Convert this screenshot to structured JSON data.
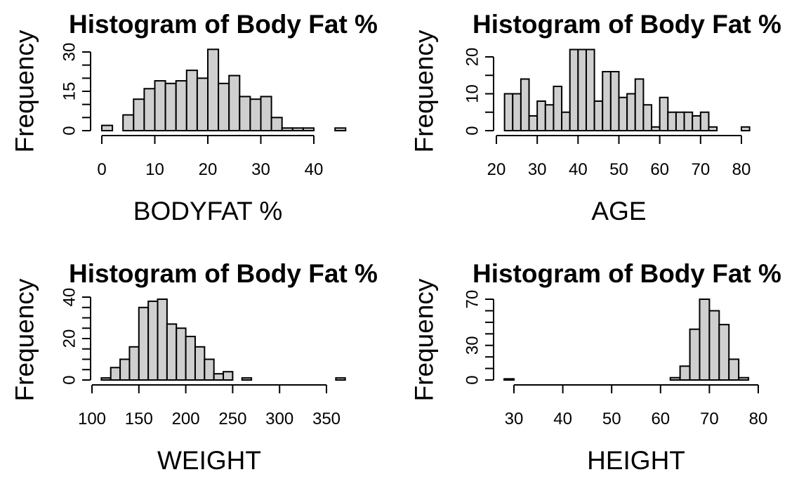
{
  "chart_data": [
    {
      "type": "histogram",
      "title": "Histogram of Body Fat %",
      "xlabel": "BODYFAT %",
      "ylabel": "Frequency",
      "bin_start": 0,
      "bin_width": 2,
      "counts": [
        2,
        0,
        6,
        12,
        16,
        19,
        18,
        19,
        23,
        20,
        31,
        18,
        21,
        13,
        12,
        13,
        5,
        1,
        1,
        1,
        0,
        0,
        1
      ],
      "xticks": [
        0,
        10,
        20,
        30,
        40
      ],
      "yticks": [
        0,
        15,
        30
      ],
      "xlim": [
        0,
        46
      ],
      "ylim": [
        0,
        31
      ]
    },
    {
      "type": "histogram",
      "title": "Histogram of Body Fat %",
      "xlabel": "AGE",
      "ylabel": "Frequency",
      "bin_start": 22,
      "bin_width": 2,
      "counts": [
        10,
        10,
        14,
        4,
        8,
        7,
        12,
        5,
        22,
        22,
        22,
        8,
        16,
        16,
        9,
        10,
        14,
        7,
        1,
        9,
        5,
        5,
        5,
        4,
        5,
        1,
        0,
        0,
        0,
        1
      ],
      "xticks": [
        20,
        30,
        40,
        50,
        60,
        70,
        80
      ],
      "yticks": [
        0,
        10,
        20
      ],
      "xlim": [
        20,
        82
      ],
      "ylim": [
        0,
        22
      ]
    },
    {
      "type": "histogram",
      "title": "Histogram of Body Fat %",
      "xlabel": "WEIGHT",
      "ylabel": "Frequency",
      "bin_start": 110,
      "bin_width": 10,
      "counts": [
        1,
        6,
        10,
        16,
        35,
        38,
        39,
        27,
        25,
        21,
        16,
        10,
        3,
        4,
        0,
        1,
        0,
        0,
        0,
        0,
        0,
        0,
        0,
        0,
        0,
        1
      ],
      "xticks": [
        100,
        150,
        200,
        250,
        300,
        350
      ],
      "yticks": [
        0,
        20,
        40
      ],
      "xlim": [
        100,
        370
      ],
      "ylim": [
        0,
        40
      ]
    },
    {
      "type": "histogram",
      "title": "Histogram of Body Fat %",
      "xlabel": "HEIGHT",
      "ylabel": "Frequency",
      "bin_start": 28,
      "bin_width": 2,
      "counts": [
        1,
        0,
        0,
        0,
        0,
        0,
        0,
        0,
        0,
        0,
        0,
        0,
        0,
        0,
        0,
        0,
        0,
        2,
        12,
        44,
        70,
        60,
        48,
        18,
        2
      ],
      "xticks": [
        30,
        40,
        50,
        60,
        70,
        80
      ],
      "yticks": [
        0,
        30,
        70
      ],
      "xlim": [
        28,
        80
      ],
      "ylim": [
        0,
        70
      ]
    }
  ]
}
